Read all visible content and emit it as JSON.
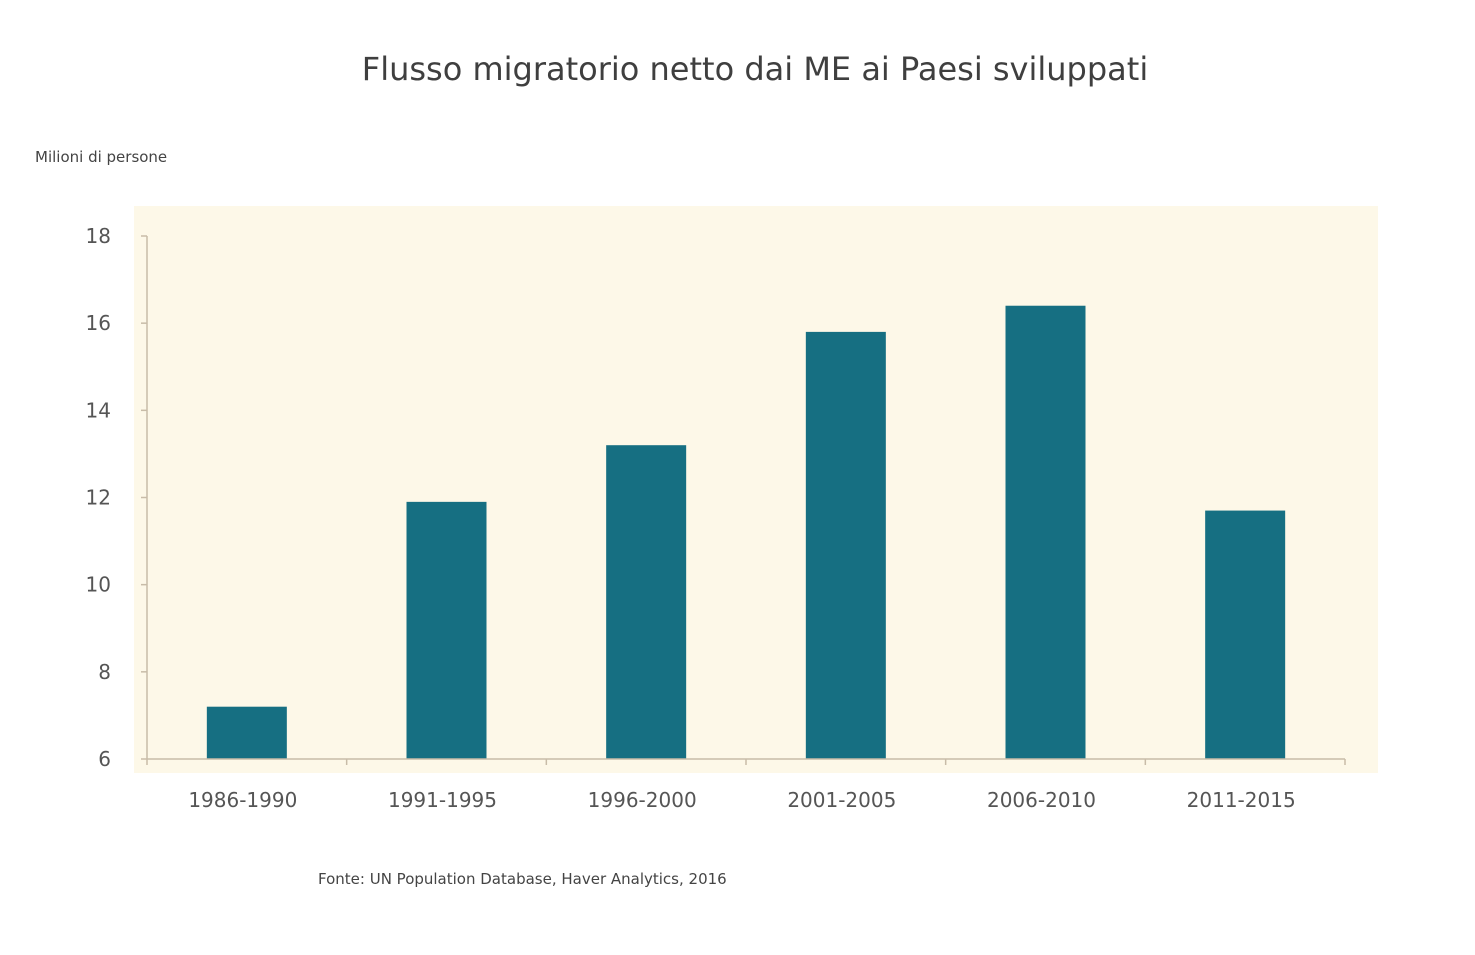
{
  "chart_data": {
    "type": "bar",
    "title": "Flusso migratorio netto dai ME ai Paesi sviluppati",
    "ylabel": "Milioni di persone",
    "xlabel": "",
    "categories": [
      "1986-1990",
      "1991-1995",
      "1996-2000",
      "2001-2005",
      "2006-2010",
      "2011-2015"
    ],
    "values": [
      7.2,
      11.9,
      13.2,
      15.8,
      16.4,
      11.7
    ],
    "ylim": [
      6,
      18
    ],
    "yticks": [
      "6",
      "8",
      "10",
      "12",
      "14",
      "16",
      "18"
    ],
    "grid": false,
    "source": "Fonte: UN Population Database, Haver Analytics, 2016",
    "colors": {
      "bar": "#166f82",
      "plot_bg": "#fdf8e8",
      "axis": "#c8bca8"
    }
  }
}
